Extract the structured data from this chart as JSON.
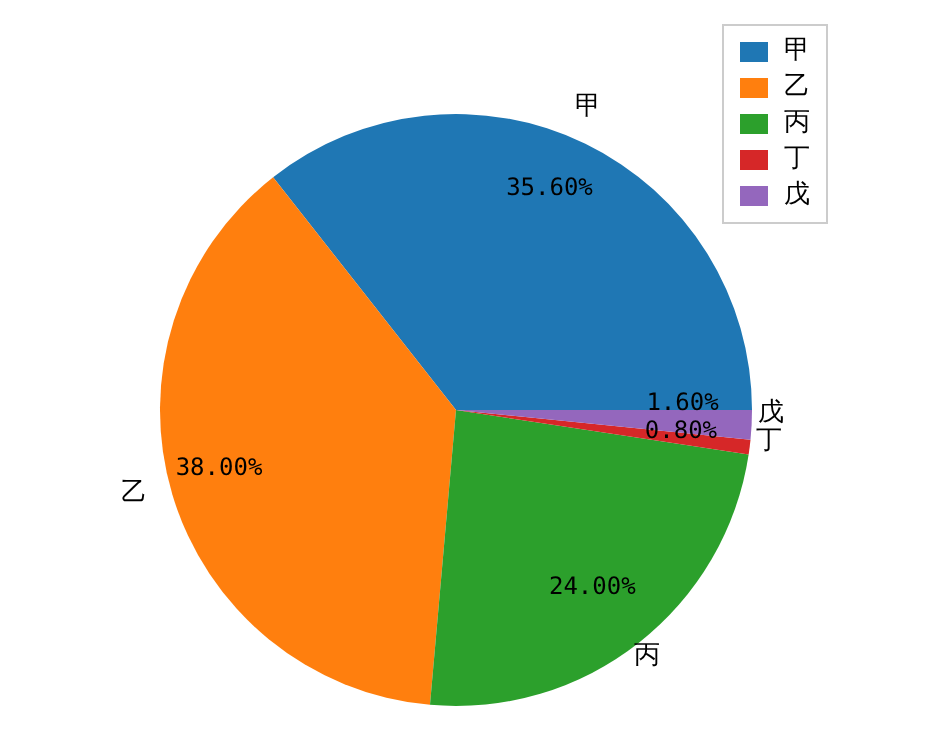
{
  "chart_data": {
    "type": "pie",
    "categories": [
      "甲",
      "乙",
      "丙",
      "丁",
      "戊"
    ],
    "values": [
      35.6,
      38.0,
      24.0,
      0.8,
      1.6
    ],
    "colors": [
      "#1f77b4",
      "#ff7f0e",
      "#2ca02c",
      "#d62728",
      "#9467bd"
    ],
    "value_labels": [
      "35.60%",
      "38.00%",
      "24.00%",
      "0.80%",
      "1.60%"
    ],
    "legend": "top right"
  }
}
